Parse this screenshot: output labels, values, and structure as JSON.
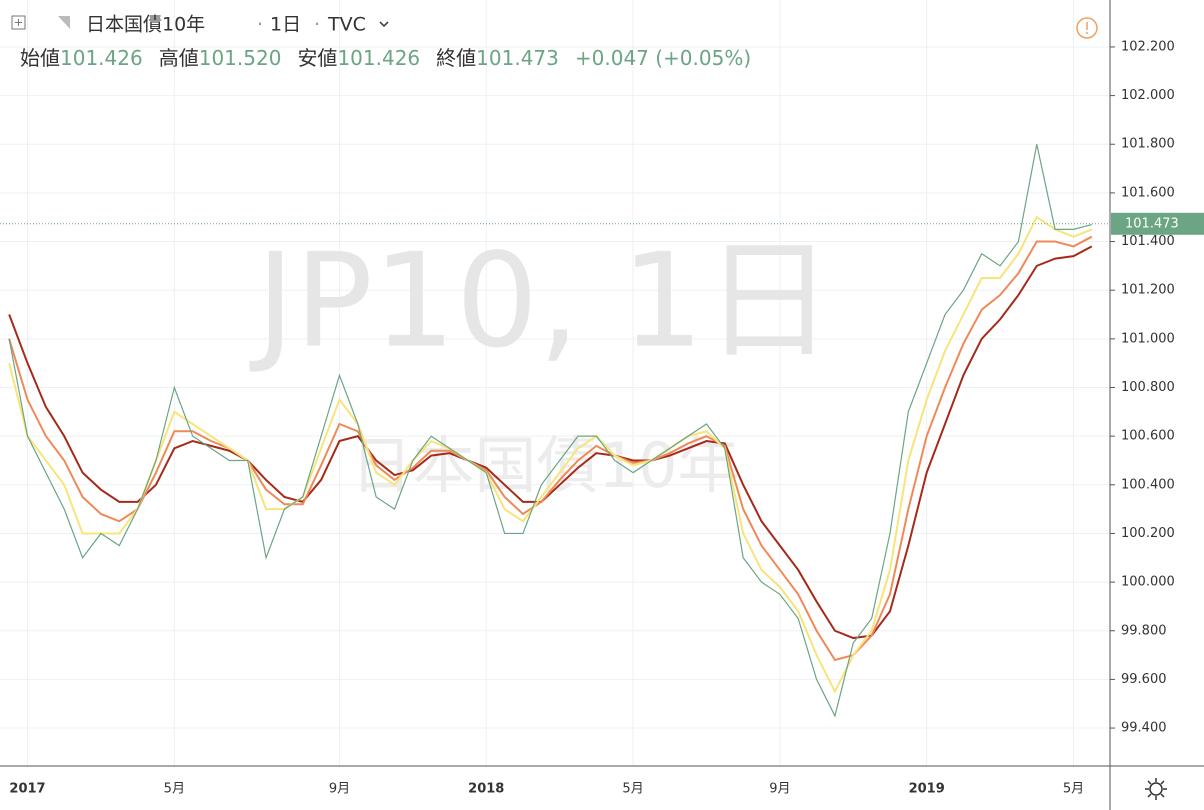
{
  "chart_data": {
    "type": "line",
    "title": "日本国債10年",
    "interval": "1日",
    "source": "TVC",
    "watermark": "JP10, 1日",
    "ohlc": {
      "open_label": "始値",
      "open": 101.426,
      "high_label": "高値",
      "high": 101.52,
      "low_label": "安値",
      "low": 101.426,
      "close_label": "終値",
      "close": 101.473,
      "change_label": "+0.047 (+0.05%)"
    },
    "last_price": {
      "value": 101.473,
      "label": "101.473"
    },
    "categories": [
      null,
      "2017",
      null,
      null,
      null,
      null,
      null,
      null,
      null,
      "5月",
      null,
      null,
      null,
      null,
      null,
      null,
      null,
      null,
      "9月",
      null,
      null,
      null,
      null,
      null,
      null,
      null,
      "2018",
      null,
      null,
      null,
      null,
      null,
      null,
      null,
      "5月",
      null,
      null,
      null,
      null,
      null,
      null,
      null,
      "9月",
      null,
      null,
      null,
      null,
      null,
      null,
      null,
      "2019",
      null,
      null,
      null,
      null,
      null,
      null,
      null,
      "5月",
      null
    ],
    "series": [
      {
        "name": "close",
        "color": "#6ba583",
        "values": [
          101.0,
          100.6,
          100.45,
          100.3,
          100.1,
          100.2,
          100.15,
          100.3,
          100.5,
          100.8,
          100.6,
          100.55,
          100.5,
          100.5,
          100.1,
          100.3,
          100.35,
          100.6,
          100.85,
          100.65,
          100.35,
          100.3,
          100.5,
          100.6,
          100.55,
          100.5,
          100.45,
          100.2,
          100.2,
          100.4,
          100.5,
          100.6,
          100.6,
          100.5,
          100.45,
          100.5,
          100.55,
          100.6,
          100.65,
          100.55,
          100.1,
          100.0,
          99.95,
          99.85,
          99.6,
          99.45,
          99.75,
          99.85,
          100.2,
          100.7,
          100.9,
          101.1,
          101.2,
          101.35,
          101.3,
          101.4,
          101.8,
          101.45,
          101.45,
          101.47
        ]
      },
      {
        "name": "ma-fast",
        "color": "#f7e47a",
        "values": [
          100.9,
          100.6,
          100.5,
          100.4,
          100.2,
          100.2,
          100.2,
          100.3,
          100.5,
          100.7,
          100.65,
          100.6,
          100.55,
          100.5,
          100.3,
          100.3,
          100.35,
          100.55,
          100.75,
          100.65,
          100.45,
          100.4,
          100.5,
          100.58,
          100.55,
          100.5,
          100.45,
          100.3,
          100.25,
          100.35,
          100.45,
          100.55,
          100.6,
          100.52,
          100.48,
          100.5,
          100.55,
          100.6,
          100.62,
          100.55,
          100.2,
          100.05,
          99.98,
          99.88,
          99.7,
          99.55,
          99.7,
          99.8,
          100.05,
          100.5,
          100.75,
          100.95,
          101.1,
          101.25,
          101.25,
          101.35,
          101.5,
          101.45,
          101.42,
          101.45
        ]
      },
      {
        "name": "ma-mid",
        "color": "#ee8a5a",
        "values": [
          101.0,
          100.75,
          100.6,
          100.5,
          100.35,
          100.28,
          100.25,
          100.3,
          100.45,
          100.62,
          100.62,
          100.58,
          100.55,
          100.5,
          100.38,
          100.32,
          100.32,
          100.48,
          100.65,
          100.62,
          100.48,
          100.42,
          100.47,
          100.54,
          100.54,
          100.5,
          100.46,
          100.35,
          100.28,
          100.33,
          100.42,
          100.5,
          100.56,
          100.52,
          100.49,
          100.5,
          100.53,
          100.57,
          100.6,
          100.56,
          100.3,
          100.15,
          100.05,
          99.95,
          99.8,
          99.68,
          99.7,
          99.78,
          99.95,
          100.3,
          100.6,
          100.8,
          100.98,
          101.12,
          101.18,
          101.27,
          101.4,
          101.4,
          101.38,
          101.42
        ]
      },
      {
        "name": "ma-slow",
        "color": "#a52a1a",
        "values": [
          101.1,
          100.9,
          100.72,
          100.6,
          100.45,
          100.38,
          100.33,
          100.33,
          100.4,
          100.55,
          100.58,
          100.56,
          100.54,
          100.5,
          100.42,
          100.35,
          100.33,
          100.42,
          100.58,
          100.6,
          100.5,
          100.44,
          100.46,
          100.52,
          100.53,
          100.5,
          100.47,
          100.4,
          100.33,
          100.33,
          100.4,
          100.47,
          100.53,
          100.52,
          100.5,
          100.5,
          100.52,
          100.55,
          100.58,
          100.57,
          100.4,
          100.25,
          100.15,
          100.05,
          99.92,
          99.8,
          99.77,
          99.78,
          99.88,
          100.15,
          100.45,
          100.65,
          100.85,
          101.0,
          101.08,
          101.18,
          101.3,
          101.33,
          101.34,
          101.38
        ]
      }
    ],
    "ylim": [
      99.244,
      102.393
    ],
    "yticks": [
      {
        "value": 99.4,
        "label": "99.400"
      },
      {
        "value": 99.6,
        "label": "99.600"
      },
      {
        "value": 99.8,
        "label": "99.800"
      },
      {
        "value": 100,
        "label": "100.000"
      },
      {
        "value": 100.2,
        "label": "100.200"
      },
      {
        "value": 100.4,
        "label": "100.400"
      },
      {
        "value": 100.6,
        "label": "100.600"
      },
      {
        "value": 100.8,
        "label": "100.800"
      },
      {
        "value": 101,
        "label": "101.000"
      },
      {
        "value": 101.2,
        "label": "101.200"
      },
      {
        "value": 101.4,
        "label": "101.400"
      },
      {
        "value": 101.6,
        "label": "101.600"
      },
      {
        "value": 101.8,
        "label": "101.800"
      },
      {
        "value": 102,
        "label": "102.000"
      },
      {
        "value": 102.2,
        "label": "102.200"
      }
    ],
    "grid": true
  }
}
